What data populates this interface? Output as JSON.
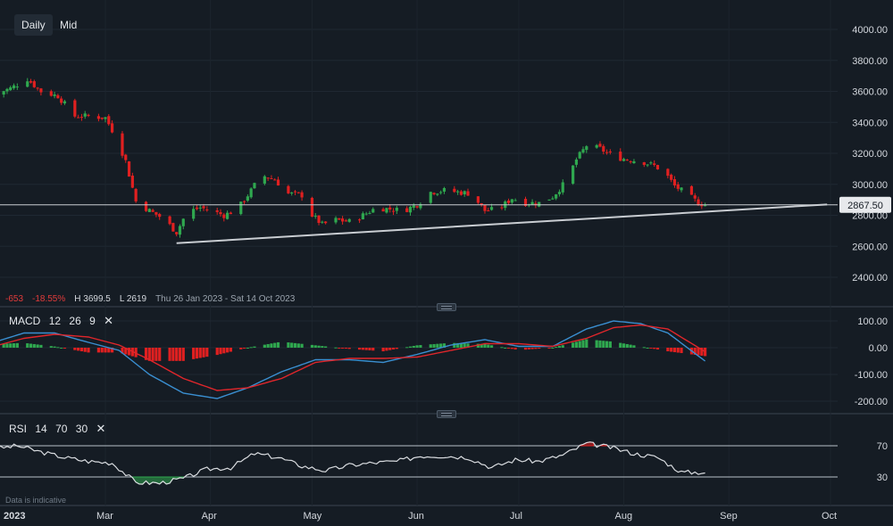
{
  "toolbar": {
    "interval": "Daily",
    "price_type": "Mid"
  },
  "stats": {
    "change": "-653",
    "change_pct": "-18.55%",
    "high": "H 3699.5",
    "low": "L 2619",
    "range": "Thu 26 Jan 2023 - Sat 14 Oct 2023"
  },
  "last_price": "2867.50",
  "macd": {
    "name": "MACD",
    "params": [
      "12",
      "26",
      "9"
    ]
  },
  "rsi": {
    "name": "RSI",
    "params": [
      "14",
      "70",
      "30"
    ]
  },
  "disclaimer": "Data is indicative",
  "colors": {
    "background": "#151c24",
    "up": "#2fa84f",
    "down": "#e02020",
    "macd_line": "#3a8fd1",
    "signal_line": "#e0262b",
    "rsi_line": "#d9dce0",
    "trendline": "#c9cdd2"
  },
  "chart_data": [
    {
      "type": "candlestick",
      "ylim": [
        2400,
        4000
      ],
      "y_ticks": [
        "4000.00",
        "3800.00",
        "3600.00",
        "3400.00",
        "3200.00",
        "3000.00",
        "2800.00",
        "2600.00",
        "2400.00"
      ],
      "x_ticks": [
        "2023",
        "Mar",
        "Apr",
        "May",
        "Jun",
        "Jul",
        "Aug",
        "Sep",
        "Oct"
      ],
      "price_series": [
        [
          "2023-01-27",
          3580
        ],
        [
          "2023-02-01",
          3620
        ],
        [
          "2023-02-06",
          3680
        ],
        [
          "2023-02-10",
          3600
        ],
        [
          "2023-02-15",
          3570
        ],
        [
          "2023-02-20",
          3440
        ],
        [
          "2023-02-24",
          3440
        ],
        [
          "2023-03-01",
          3430
        ],
        [
          "2023-03-04",
          3310
        ],
        [
          "2023-03-07",
          3150
        ],
        [
          "2023-03-10",
          2890
        ],
        [
          "2023-03-14",
          2830
        ],
        [
          "2023-03-18",
          2780
        ],
        [
          "2023-03-22",
          2690
        ],
        [
          "2023-03-25",
          2820
        ],
        [
          "2023-03-29",
          2850
        ],
        [
          "2023-04-01",
          2830
        ],
        [
          "2023-04-05",
          2800
        ],
        [
          "2023-04-09",
          2840
        ],
        [
          "2023-04-13",
          2960
        ],
        [
          "2023-04-16",
          3060
        ],
        [
          "2023-04-20",
          3030
        ],
        [
          "2023-04-24",
          2940
        ],
        [
          "2023-04-28",
          2930
        ],
        [
          "2023-05-01",
          2800
        ],
        [
          "2023-05-04",
          2740
        ],
        [
          "2023-05-08",
          2770
        ],
        [
          "2023-05-12",
          2760
        ],
        [
          "2023-05-16",
          2800
        ],
        [
          "2023-05-20",
          2850
        ],
        [
          "2023-05-24",
          2840
        ],
        [
          "2023-05-28",
          2830
        ],
        [
          "2023-06-01",
          2870
        ],
        [
          "2023-06-05",
          2950
        ],
        [
          "2023-06-09",
          2960
        ],
        [
          "2023-06-13",
          2950
        ],
        [
          "2023-06-17",
          2940
        ],
        [
          "2023-06-21",
          2830
        ],
        [
          "2023-06-25",
          2840
        ],
        [
          "2023-06-29",
          2910
        ],
        [
          "2023-07-03",
          2880
        ],
        [
          "2023-07-07",
          2880
        ],
        [
          "2023-07-11",
          2920
        ],
        [
          "2023-07-15",
          3020
        ],
        [
          "2023-07-18",
          3160
        ],
        [
          "2023-07-21",
          3250
        ],
        [
          "2023-07-25",
          3230
        ],
        [
          "2023-07-29",
          3180
        ],
        [
          "2023-08-02",
          3160
        ],
        [
          "2023-08-06",
          3150
        ],
        [
          "2023-08-10",
          3120
        ],
        [
          "2023-08-13",
          3080
        ],
        [
          "2023-08-16",
          2990
        ],
        [
          "2023-08-20",
          2930
        ],
        [
          "2023-08-23",
          2880
        ],
        [
          "2023-08-25",
          2867.5
        ]
      ],
      "horizontal_line": 2867.5,
      "trendline": [
        [
          "2023-03-22",
          2620
        ],
        [
          "2023-09-30",
          2870
        ]
      ]
    },
    {
      "type": "line",
      "title": "MACD",
      "ylim": [
        -230,
        130
      ],
      "y_ticks": [
        "100.00",
        "0.00",
        "-100.00",
        "-200.00"
      ],
      "series": [
        {
          "name": "MACD",
          "values": [
            [
              "2023-01-27",
              20
            ],
            [
              "2023-02-05",
              55
            ],
            [
              "2023-02-14",
              55
            ],
            [
              "2023-02-24",
              20
            ],
            [
              "2023-03-05",
              -10
            ],
            [
              "2023-03-14",
              -100
            ],
            [
              "2023-03-24",
              -170
            ],
            [
              "2023-04-03",
              -190
            ],
            [
              "2023-04-12",
              -150
            ],
            [
              "2023-04-22",
              -90
            ],
            [
              "2023-05-02",
              -45
            ],
            [
              "2023-05-12",
              -45
            ],
            [
              "2023-05-22",
              -55
            ],
            [
              "2023-06-01",
              -25
            ],
            [
              "2023-06-11",
              10
            ],
            [
              "2023-06-21",
              30
            ],
            [
              "2023-07-01",
              5
            ],
            [
              "2023-07-11",
              5
            ],
            [
              "2023-07-21",
              70
            ],
            [
              "2023-07-29",
              100
            ],
            [
              "2023-08-06",
              90
            ],
            [
              "2023-08-14",
              55
            ],
            [
              "2023-08-25",
              -50
            ]
          ]
        },
        {
          "name": "Signal",
          "values": [
            [
              "2023-01-27",
              5
            ],
            [
              "2023-02-05",
              35
            ],
            [
              "2023-02-14",
              50
            ],
            [
              "2023-02-24",
              40
            ],
            [
              "2023-03-05",
              10
            ],
            [
              "2023-03-14",
              -45
            ],
            [
              "2023-03-24",
              -115
            ],
            [
              "2023-04-03",
              -160
            ],
            [
              "2023-04-12",
              -150
            ],
            [
              "2023-04-22",
              -115
            ],
            [
              "2023-05-02",
              -55
            ],
            [
              "2023-05-12",
              -40
            ],
            [
              "2023-05-22",
              -40
            ],
            [
              "2023-06-01",
              -35
            ],
            [
              "2023-06-11",
              -10
            ],
            [
              "2023-06-21",
              15
            ],
            [
              "2023-07-01",
              15
            ],
            [
              "2023-07-11",
              5
            ],
            [
              "2023-07-21",
              35
            ],
            [
              "2023-07-29",
              75
            ],
            [
              "2023-08-06",
              85
            ],
            [
              "2023-08-14",
              70
            ],
            [
              "2023-08-25",
              -15
            ]
          ]
        }
      ]
    },
    {
      "type": "line",
      "title": "RSI",
      "ylim": [
        10,
        80
      ],
      "y_ticks": [
        "70",
        "30"
      ],
      "levels": [
        70,
        30
      ],
      "series": [
        {
          "name": "RSI",
          "values": [
            [
              "2023-01-27",
              66
            ],
            [
              "2023-02-03",
              70
            ],
            [
              "2023-02-10",
              62
            ],
            [
              "2023-02-17",
              55
            ],
            [
              "2023-02-24",
              50
            ],
            [
              "2023-03-03",
              48
            ],
            [
              "2023-03-10",
              23
            ],
            [
              "2023-03-17",
              22
            ],
            [
              "2023-03-24",
              28
            ],
            [
              "2023-03-31",
              40
            ],
            [
              "2023-04-07",
              42
            ],
            [
              "2023-04-14",
              60
            ],
            [
              "2023-04-21",
              55
            ],
            [
              "2023-04-28",
              44
            ],
            [
              "2023-05-05",
              38
            ],
            [
              "2023-05-12",
              45
            ],
            [
              "2023-05-19",
              48
            ],
            [
              "2023-05-26",
              50
            ],
            [
              "2023-06-02",
              57
            ],
            [
              "2023-06-09",
              57
            ],
            [
              "2023-06-16",
              55
            ],
            [
              "2023-06-23",
              42
            ],
            [
              "2023-06-30",
              52
            ],
            [
              "2023-07-07",
              50
            ],
            [
              "2023-07-14",
              58
            ],
            [
              "2023-07-21",
              73
            ],
            [
              "2023-07-28",
              68
            ],
            [
              "2023-08-04",
              60
            ],
            [
              "2023-08-11",
              55
            ],
            [
              "2023-08-18",
              36
            ],
            [
              "2023-08-25",
              36
            ]
          ]
        }
      ]
    }
  ]
}
